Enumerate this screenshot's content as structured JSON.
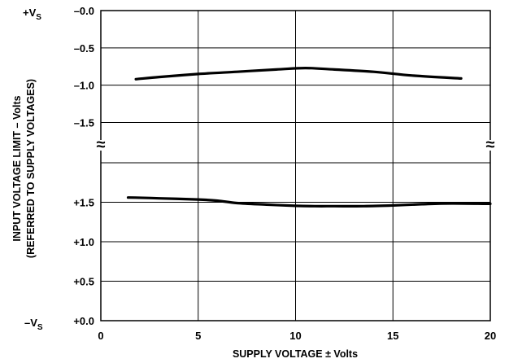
{
  "chart_data": {
    "type": "line",
    "title": "",
    "xlabel": "SUPPLY VOLTAGE ± Volts",
    "ylabel_lines": [
      "INPUT VOLTAGE LIMIT – Volts",
      "(REFERRED TO SUPPLY VOLTAGES)"
    ],
    "xlim": [
      0,
      20
    ],
    "x_ticks": [
      "0",
      "5",
      "10",
      "15",
      "20"
    ],
    "grid": true,
    "upper_panel": {
      "reference_label_main": "+V",
      "reference_label_sub": "S",
      "ylim": [
        -1.8,
        0
      ],
      "y_ticks": [
        "–0.0",
        "–0.5",
        "–1.0",
        "–1.5"
      ],
      "series": [
        {
          "x": [
            1.8,
            3,
            5,
            7,
            9,
            10.5,
            12,
            14,
            16,
            18.5
          ],
          "y": [
            -0.92,
            -0.89,
            -0.85,
            -0.82,
            -0.79,
            -0.77,
            -0.79,
            -0.82,
            -0.87,
            -0.91
          ]
        }
      ]
    },
    "lower_panel": {
      "reference_label_main": "–V",
      "reference_label_sub": "S",
      "ylim": [
        0,
        2.0
      ],
      "y_ticks": [
        "+0.0",
        "+0.5",
        "+1.0",
        "+1.5"
      ],
      "series": [
        {
          "x": [
            1.4,
            3,
            5,
            6,
            7,
            8.5,
            10,
            11,
            12,
            13.5,
            15,
            16.5,
            18,
            20
          ],
          "y": [
            1.56,
            1.55,
            1.535,
            1.52,
            1.49,
            1.47,
            1.455,
            1.45,
            1.45,
            1.45,
            1.46,
            1.475,
            1.485,
            1.48
          ]
        }
      ]
    },
    "axis_break": "≈"
  }
}
